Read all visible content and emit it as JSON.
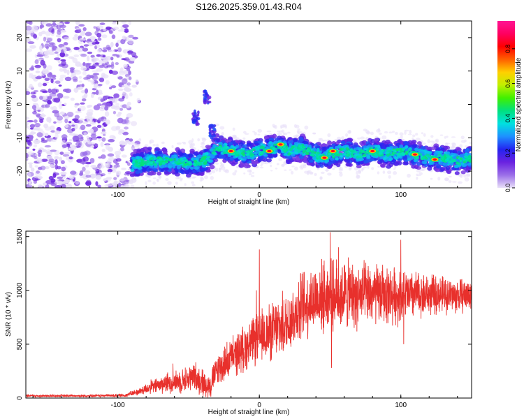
{
  "title": "S126.2025.359.01.43.R04",
  "colors": {
    "snr_line": "#e8302c",
    "frame": "#000000"
  },
  "chart_data": [
    {
      "type": "heatmap",
      "name": "spectrogram",
      "title": "S126.2025.359.01.43.R04",
      "xlabel": "Height of straight line (km)",
      "ylabel": "Frequency (Hz)",
      "xlim": [
        -165,
        150
      ],
      "ylim": [
        -25,
        25
      ],
      "x_ticks": [
        -100,
        0,
        100
      ],
      "y_ticks": [
        -20,
        -10,
        0,
        10,
        20
      ],
      "colorbar": {
        "label": "Normalized spectral amplitude",
        "range": [
          0.0,
          0.96
        ],
        "ticks": [
          0.0,
          0.2,
          0.4,
          0.6,
          0.8
        ],
        "colormap": [
          "#e8e0f8",
          "#9b6fe8",
          "#6a22e0",
          "#2424f0",
          "#1e90ff",
          "#00e0e0",
          "#00e080",
          "#40f000",
          "#c0f000",
          "#ffd000",
          "#ff6000",
          "#ff0000",
          "#ff0060",
          "#ff1493"
        ]
      },
      "features": {
        "noise_region_x": [
          -165,
          -90
        ],
        "track_start_x": -90,
        "track_end_x": 150,
        "track_freq_hz": [
          [
            -90,
            -18
          ],
          [
            -80,
            -17
          ],
          [
            -70,
            -17
          ],
          [
            -60,
            -17
          ],
          [
            -50,
            -18
          ],
          [
            -40,
            -17
          ],
          [
            -35,
            -16
          ],
          [
            -30,
            -13
          ],
          [
            -20,
            -14
          ],
          [
            -10,
            -15
          ],
          [
            0,
            -14
          ],
          [
            10,
            -13
          ],
          [
            15,
            -12
          ],
          [
            20,
            -14
          ],
          [
            30,
            -13
          ],
          [
            40,
            -15
          ],
          [
            45,
            -16
          ],
          [
            50,
            -15
          ],
          [
            60,
            -14
          ],
          [
            70,
            -15
          ],
          [
            80,
            -14
          ],
          [
            90,
            -15
          ],
          [
            100,
            -14
          ],
          [
            110,
            -15
          ],
          [
            120,
            -16
          ],
          [
            130,
            -16
          ],
          [
            140,
            -17
          ],
          [
            150,
            -16
          ]
        ],
        "peaks": [
          {
            "x": 15,
            "y": -12
          },
          {
            "x": -20,
            "y": -14
          },
          {
            "x": 7,
            "y": -14
          },
          {
            "x": 46,
            "y": -16
          },
          {
            "x": 110,
            "y": -15
          },
          {
            "x": 124,
            "y": -16.5
          },
          {
            "x": 52,
            "y": -14
          },
          {
            "x": 80,
            "y": -14
          }
        ],
        "isolated_blobs": [
          {
            "x": -45,
            "y": -4
          },
          {
            "x": -37,
            "y": 2.5
          },
          {
            "x": -33,
            "y": -8
          }
        ]
      }
    },
    {
      "type": "line",
      "name": "snr",
      "xlabel": "Height of straight line (km)",
      "ylabel": "SNR (10 * v/v)",
      "xlim": [
        -165,
        150
      ],
      "ylim": [
        0,
        1550
      ],
      "x_ticks": [
        -100,
        0,
        100
      ],
      "y_ticks": [
        0,
        500,
        1000,
        1500
      ],
      "series": [
        {
          "color": "#e8302c",
          "envelope": [
            [
              -165,
              20,
              15
            ],
            [
              -140,
              20,
              15
            ],
            [
              -110,
              22,
              15
            ],
            [
              -95,
              25,
              20
            ],
            [
              -85,
              60,
              40
            ],
            [
              -75,
              110,
              80
            ],
            [
              -65,
              140,
              110
            ],
            [
              -55,
              160,
              130
            ],
            [
              -45,
              200,
              160
            ],
            [
              -40,
              140,
              150
            ],
            [
              -35,
              110,
              140
            ],
            [
              -30,
              260,
              180
            ],
            [
              -25,
              310,
              200
            ],
            [
              -20,
              380,
              210
            ],
            [
              -15,
              420,
              230
            ],
            [
              -10,
              470,
              250
            ],
            [
              -5,
              520,
              260
            ],
            [
              0,
              560,
              280
            ],
            [
              5,
              600,
              300
            ],
            [
              10,
              620,
              320
            ],
            [
              15,
              660,
              330
            ],
            [
              20,
              700,
              350
            ],
            [
              25,
              780,
              360
            ],
            [
              30,
              850,
              380
            ],
            [
              35,
              900,
              380
            ],
            [
              40,
              930,
              380
            ],
            [
              50,
              950,
              380
            ],
            [
              60,
              960,
              380
            ],
            [
              70,
              950,
              360
            ],
            [
              80,
              960,
              340
            ],
            [
              90,
              960,
              320
            ],
            [
              100,
              950,
              300
            ],
            [
              110,
              960,
              260
            ],
            [
              120,
              960,
              220
            ],
            [
              130,
              960,
              200
            ],
            [
              140,
              950,
              190
            ],
            [
              150,
              960,
              180
            ]
          ],
          "spikes": [
            [
              0,
              1380
            ],
            [
              -2,
              1000
            ],
            [
              50,
              1540
            ],
            [
              56,
              1400
            ],
            [
              100,
              1470
            ],
            [
              102,
              500
            ],
            [
              -40,
              180
            ],
            [
              -11,
              280
            ],
            [
              51,
              280
            ],
            [
              -61,
              320
            ]
          ]
        }
      ]
    }
  ]
}
